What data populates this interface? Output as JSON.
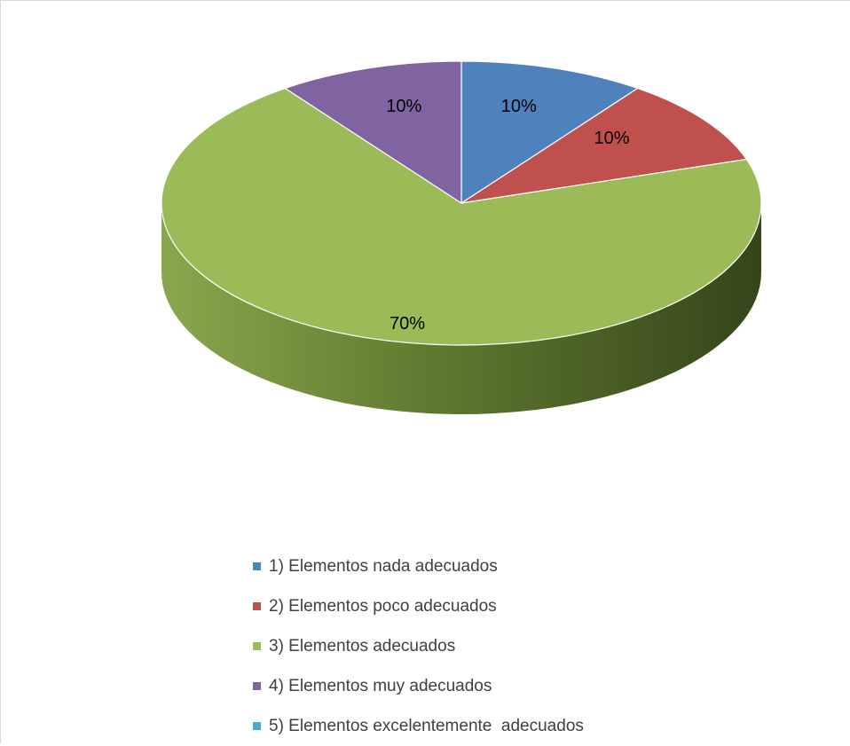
{
  "chart_data": {
    "type": "pie",
    "style": "3d",
    "categories": [
      "1) Elementos nada adecuados",
      "2) Elementos poco adecuados",
      "3) Elementos adecuados",
      "4) Elementos muy adecuados",
      "5) Elementos excelentemente  adecuados"
    ],
    "values": [
      10,
      10,
      70,
      10,
      0
    ],
    "data_labels": [
      "10%",
      "10%",
      "70%",
      "10%",
      ""
    ],
    "colors": [
      "#4F81BD",
      "#C0504D",
      "#9BBB59",
      "#8064A2",
      "#4BACC6"
    ],
    "legend_position": "bottom",
    "title": ""
  }
}
